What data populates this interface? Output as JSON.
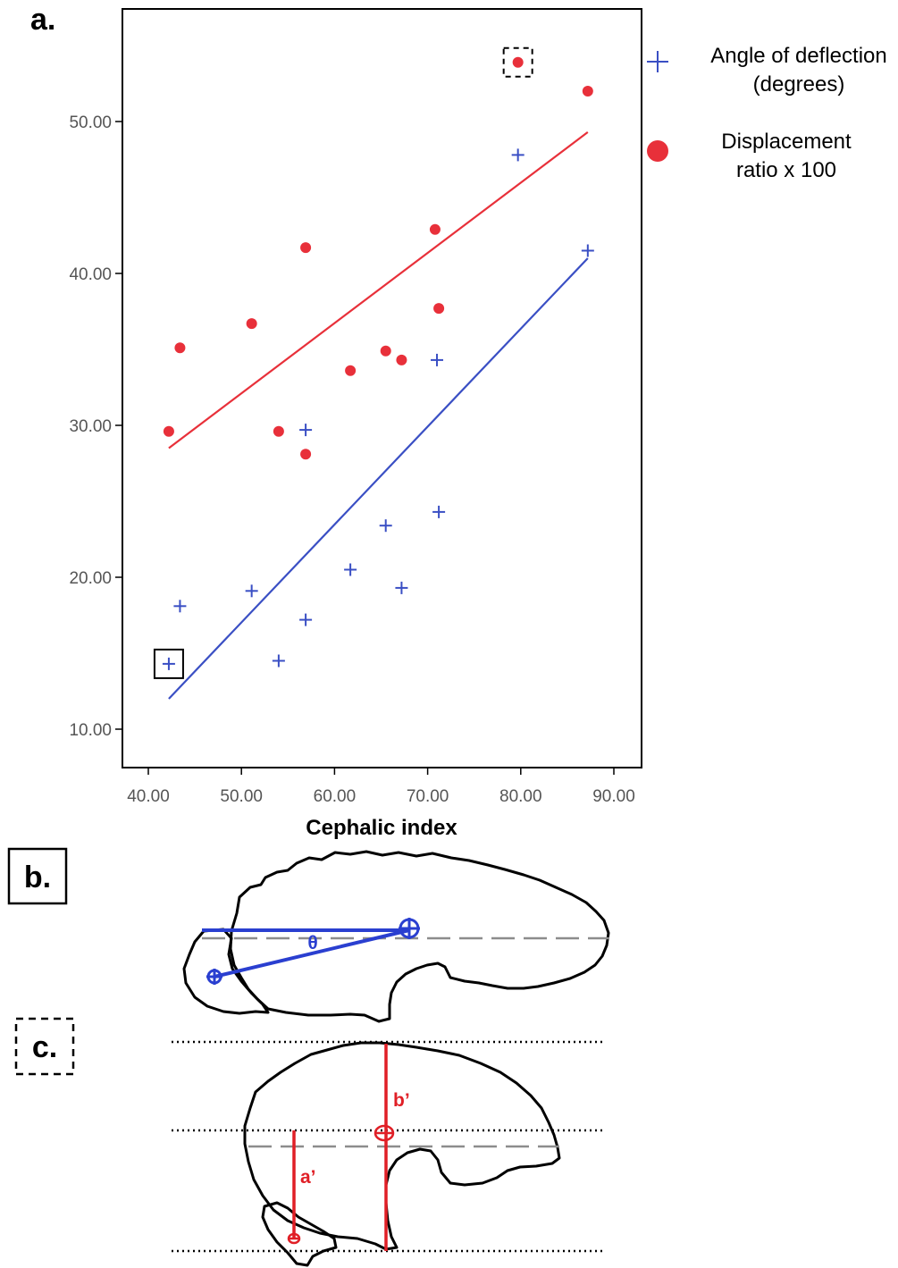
{
  "panel_labels": {
    "a": "a.",
    "b": "b.",
    "c": "c."
  },
  "colors": {
    "series_angle": "#3a4fc4",
    "series_displacement": "#e8303a",
    "axis": "#000000",
    "tick_text": "#555555",
    "outline": "#000000",
    "dashed_line": "#8c8c8c"
  },
  "chart_data": {
    "type": "scatter",
    "xlabel": "Cephalic index",
    "ylabel": "",
    "xlim": [
      37,
      93
    ],
    "ylim": [
      7,
      57
    ],
    "x_ticks": [
      "40.00",
      "50.00",
      "60.00",
      "70.00",
      "80.00",
      "90.00"
    ],
    "x_tick_values": [
      40,
      50,
      60,
      70,
      80,
      90
    ],
    "y_ticks": [
      "10.00",
      "20.00",
      "30.00",
      "40.00",
      "50.00"
    ],
    "y_tick_values": [
      10,
      20,
      30,
      40,
      50
    ],
    "legend_position": "right",
    "series": [
      {
        "name": "Angle of deflection (degrees)",
        "legend_lines": [
          "Angle of deflection",
          "(degrees)"
        ],
        "marker": "plus",
        "points": [
          {
            "x": 42.2,
            "y": 14.3
          },
          {
            "x": 43.4,
            "y": 18.1
          },
          {
            "x": 51.1,
            "y": 19.1
          },
          {
            "x": 54.0,
            "y": 14.5
          },
          {
            "x": 56.9,
            "y": 17.2
          },
          {
            "x": 56.9,
            "y": 29.7
          },
          {
            "x": 61.7,
            "y": 20.5
          },
          {
            "x": 65.5,
            "y": 23.4
          },
          {
            "x": 67.2,
            "y": 19.3
          },
          {
            "x": 71.0,
            "y": 34.3
          },
          {
            "x": 71.2,
            "y": 24.3
          },
          {
            "x": 79.7,
            "y": 47.8
          },
          {
            "x": 87.2,
            "y": 41.5
          }
        ],
        "fit_line": [
          {
            "x": 42.2,
            "y": 12.0
          },
          {
            "x": 87.2,
            "y": 41.0
          }
        ]
      },
      {
        "name": "Displacement ratio x 100",
        "legend_lines": [
          "Displacement",
          "ratio x 100"
        ],
        "marker": "circle",
        "points": [
          {
            "x": 42.2,
            "y": 29.6
          },
          {
            "x": 43.4,
            "y": 35.1
          },
          {
            "x": 51.1,
            "y": 36.7
          },
          {
            "x": 54.0,
            "y": 29.6
          },
          {
            "x": 56.9,
            "y": 28.1
          },
          {
            "x": 56.9,
            "y": 41.7
          },
          {
            "x": 61.7,
            "y": 33.6
          },
          {
            "x": 65.5,
            "y": 34.9
          },
          {
            "x": 67.2,
            "y": 34.3
          },
          {
            "x": 70.8,
            "y": 42.9
          },
          {
            "x": 71.2,
            "y": 37.7
          },
          {
            "x": 79.7,
            "y": 53.9
          },
          {
            "x": 87.2,
            "y": 52.0
          }
        ],
        "fit_line": [
          {
            "x": 42.2,
            "y": 28.5
          },
          {
            "x": 87.2,
            "y": 49.3
          }
        ]
      }
    ],
    "highlights": [
      {
        "series": "Angle of deflection (degrees)",
        "x": 42.2,
        "y": 14.3,
        "box": "solid"
      },
      {
        "series": "Displacement ratio x 100",
        "x": 79.7,
        "y": 53.9,
        "box": "dashed"
      }
    ]
  },
  "diagram_b": {
    "angle_label": "θ"
  },
  "diagram_c": {
    "label_a": "a’",
    "label_b": "b’"
  }
}
